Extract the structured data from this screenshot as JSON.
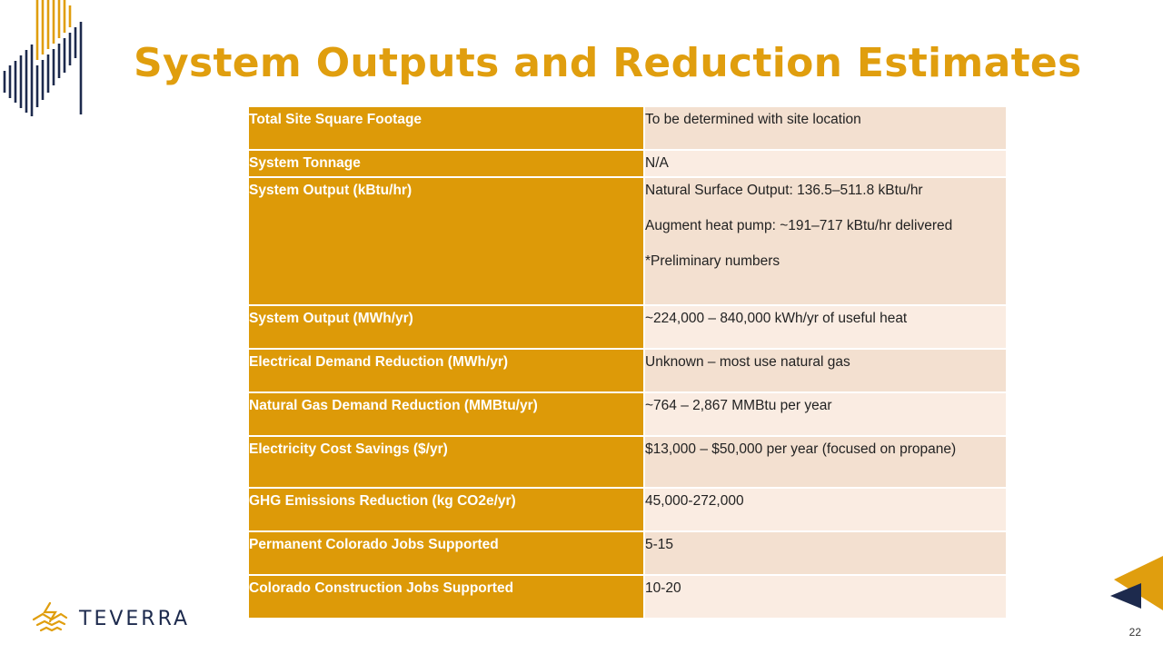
{
  "slide": {
    "title": "System Outputs and Reduction Estimates",
    "page_number": "22",
    "brand": "TEVERRA"
  },
  "colors": {
    "accent_gold": "#e09e0e",
    "label_fill": "#dd9a08",
    "value_fill_dark": "#f3e0d0",
    "value_fill_light": "#faece2",
    "navy": "#1d2a4d"
  },
  "table": {
    "rows": [
      {
        "label": "Total Site Square Footage",
        "values": [
          "To be determined with site location"
        ]
      },
      {
        "label": "System Tonnage",
        "values": [
          "N/A"
        ]
      },
      {
        "label": "System Output (kBtu/hr)",
        "values": [
          "Natural Surface Output: 136.5–511.8 kBtu/hr",
          "Augment heat pump: ~191–717 kBtu/hr delivered",
          "*Preliminary numbers"
        ]
      },
      {
        "label": "System Output (MWh/yr)",
        "values": [
          "~224,000 – 840,000 kWh/yr of useful heat"
        ]
      },
      {
        "label": "Electrical Demand Reduction (MWh/yr)",
        "values": [
          "Unknown – most use natural gas"
        ]
      },
      {
        "label": "Natural Gas Demand Reduction (MMBtu/yr)",
        "values": [
          "~764 – 2,867 MMBtu per year"
        ]
      },
      {
        "label": "Electricity Cost Savings ($/yr)",
        "values": [
          "$13,000 – $50,000 per year (focused on propane)"
        ]
      },
      {
        "label": "GHG Emissions Reduction (kg CO2e/yr)",
        "values": [
          "45,000-272,000"
        ]
      },
      {
        "label": "Permanent Colorado Jobs Supported",
        "values": [
          "5-15"
        ]
      },
      {
        "label": "Colorado Construction Jobs Supported",
        "values": [
          "10-20"
        ]
      }
    ]
  }
}
